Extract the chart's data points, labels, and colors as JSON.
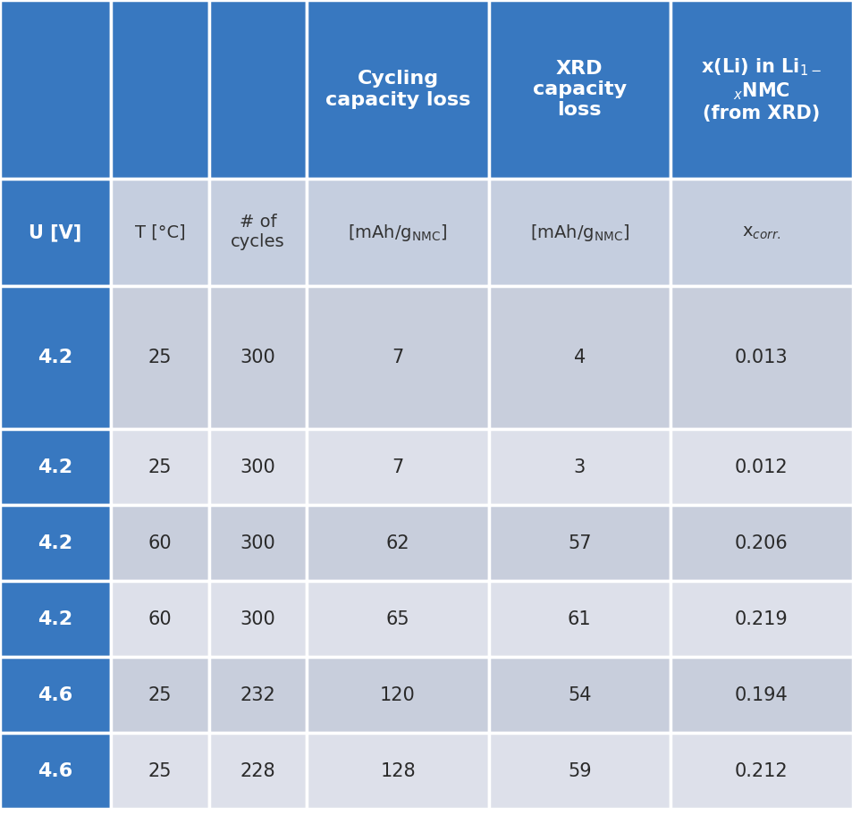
{
  "header_bg_color": "#3878C0",
  "header_text_color": "#FFFFFF",
  "subheader_bg_light": "#C5CEDF",
  "subheader_bg_dark": "#3878C0",
  "subheader_text_light": "#333333",
  "subheader_text_dark": "#FFFFFF",
  "row_color_dark": "#C8CEDC",
  "row_color_light": "#DDE0EA",
  "col1_bg_color": "#3878C0",
  "col1_text_color": "#FFFFFF",
  "border_color": "#FFFFFF",
  "data_rows": [
    [
      "4.2",
      "25",
      "300",
      "7",
      "4",
      "0.013"
    ],
    [
      "4.2",
      "25",
      "300",
      "7",
      "3",
      "0.012"
    ],
    [
      "4.2",
      "60",
      "300",
      "62",
      "57",
      "0.206"
    ],
    [
      "4.2",
      "60",
      "300",
      "65",
      "61",
      "0.219"
    ],
    [
      "4.6",
      "25",
      "232",
      "120",
      "54",
      "0.194"
    ],
    [
      "4.6",
      "25",
      "228",
      "128",
      "59",
      "0.212"
    ]
  ],
  "figsize": [
    9.54,
    9.22
  ],
  "dpi": 100
}
